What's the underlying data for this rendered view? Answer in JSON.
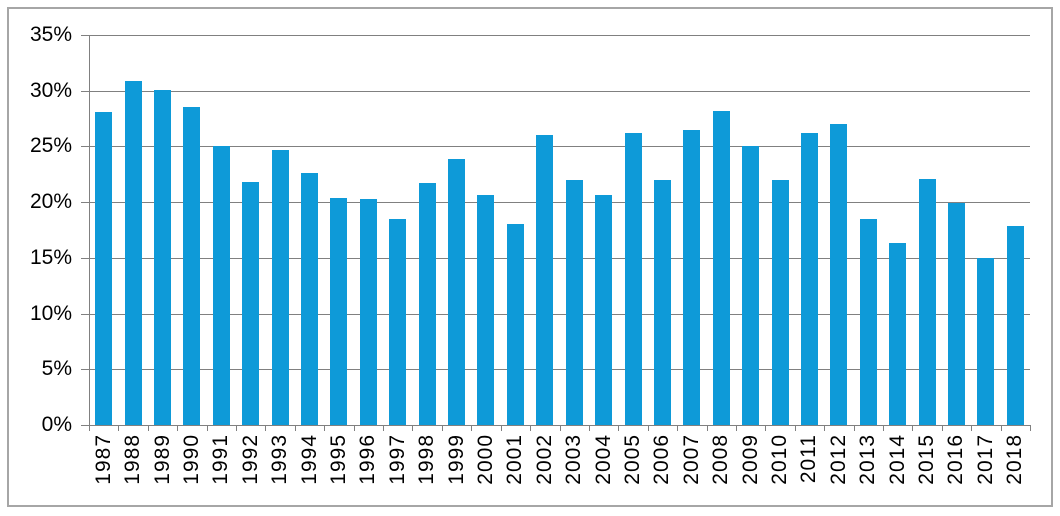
{
  "chart_data": {
    "type": "bar",
    "title": "",
    "xlabel": "",
    "ylabel": "",
    "categories": [
      "1987",
      "1988",
      "1989",
      "1990",
      "1991",
      "1992",
      "1993",
      "1994",
      "1995",
      "1996",
      "1997",
      "1998",
      "1999",
      "2000",
      "2001",
      "2002",
      "2003",
      "2004",
      "2005",
      "2006",
      "2007",
      "2008",
      "2009",
      "2010",
      "2011",
      "2012",
      "2013",
      "2014",
      "2015",
      "2016",
      "2017",
      "2018"
    ],
    "values": [
      28.1,
      30.9,
      30.1,
      28.5,
      25.0,
      21.8,
      24.7,
      22.6,
      20.4,
      20.3,
      18.5,
      21.7,
      23.9,
      20.6,
      18.0,
      26.0,
      22.0,
      20.6,
      26.2,
      22.0,
      26.5,
      28.2,
      25.0,
      22.0,
      26.2,
      27.0,
      18.5,
      16.3,
      22.1,
      19.9,
      15.0,
      17.9
    ],
    "ylim": [
      0,
      35
    ],
    "ytick_step": 5,
    "ytick_labels": [
      "0%",
      "5%",
      "10%",
      "15%",
      "20%",
      "25%",
      "30%",
      "35%"
    ],
    "grid": true,
    "legend": "none",
    "colors": {
      "bar": "#0E9AD8",
      "gridline": "#808080",
      "axis": "#808080",
      "tick": "#808080",
      "label": "#000000",
      "frame_border": "#A6A6A6",
      "background": "#FFFFFF"
    }
  }
}
